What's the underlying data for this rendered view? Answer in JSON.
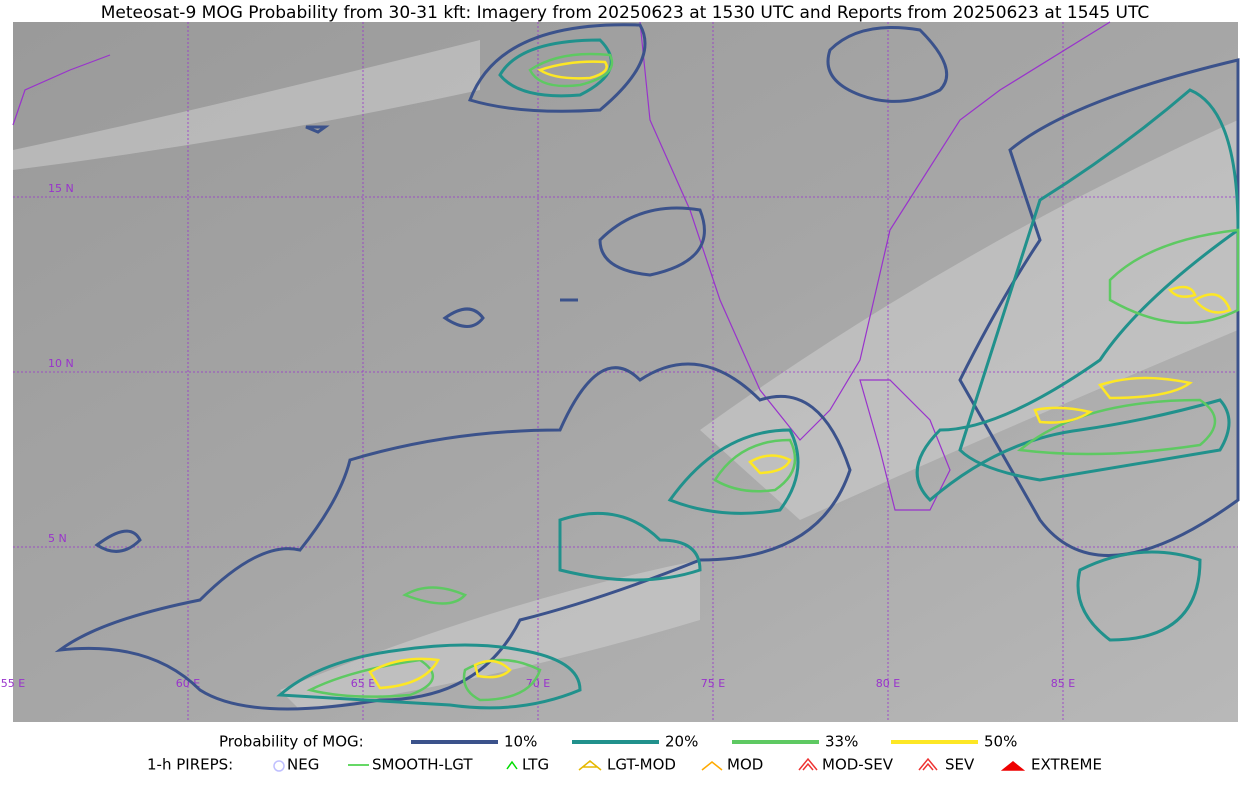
{
  "title": "Meteosat-9 MOG Probability from 30-31 kft: Imagery from 20250623 at 1530 UTC and Reports from 20250623 at 1545 UTC",
  "map": {
    "lat_labels": [
      "15 N",
      "10 N",
      "5 N"
    ],
    "lon_labels": [
      "55 E",
      "60 E",
      "65 E",
      "70 E",
      "75 E",
      "80 E",
      "85 E"
    ]
  },
  "legend": {
    "probability": {
      "label": "Probability of MOG:",
      "entries": [
        {
          "label": "10%",
          "color": "#3b528b"
        },
        {
          "label": "20%",
          "color": "#21918c"
        },
        {
          "label": "33%",
          "color": "#5ec962"
        },
        {
          "label": "50%",
          "color": "#fde725"
        }
      ]
    },
    "pireps": {
      "label": "1-h PIREPS:",
      "entries": [
        "NEG",
        "SMOOTH-LGT",
        "LTG",
        "LGT-MOD",
        "MOD",
        "MOD-SEV",
        "SEV",
        "EXTREME"
      ]
    }
  }
}
